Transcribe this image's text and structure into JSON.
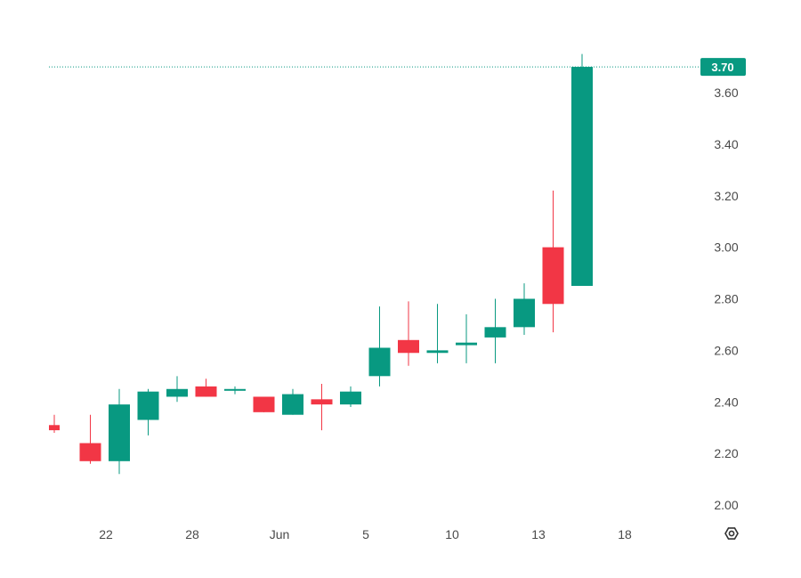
{
  "chart_data": {
    "type": "candlestick",
    "x_ticks": [
      "22",
      "28",
      "Jun",
      "5",
      "10",
      "13",
      "18"
    ],
    "y_ticks": [
      "2.00",
      "2.20",
      "2.40",
      "2.60",
      "2.80",
      "3.00",
      "3.20",
      "3.40",
      "3.60"
    ],
    "ylim": [
      1.95,
      3.78
    ],
    "last_price": 3.7,
    "last_price_label": "3.70",
    "colors": {
      "up": "#089981",
      "down": "#f23645",
      "badge": "#089981",
      "text": "#4a4a4a"
    },
    "candles": [
      {
        "open": 2.31,
        "high": 2.35,
        "low": 2.28,
        "close": 2.29
      },
      {
        "open": 2.24,
        "high": 2.35,
        "low": 2.16,
        "close": 2.17
      },
      {
        "open": 2.17,
        "high": 2.45,
        "low": 2.12,
        "close": 2.39
      },
      {
        "open": 2.33,
        "high": 2.45,
        "low": 2.27,
        "close": 2.44
      },
      {
        "open": 2.42,
        "high": 2.5,
        "low": 2.4,
        "close": 2.45
      },
      {
        "open": 2.46,
        "high": 2.49,
        "low": 2.42,
        "close": 2.42
      },
      {
        "open": 2.45,
        "high": 2.46,
        "low": 2.43,
        "close": 2.45
      },
      {
        "open": 2.42,
        "high": 2.42,
        "low": 2.36,
        "close": 2.36
      },
      {
        "open": 2.35,
        "high": 2.45,
        "low": 2.35,
        "close": 2.43
      },
      {
        "open": 2.41,
        "high": 2.47,
        "low": 2.29,
        "close": 2.39
      },
      {
        "open": 2.39,
        "high": 2.46,
        "low": 2.38,
        "close": 2.44
      },
      {
        "open": 2.5,
        "high": 2.77,
        "low": 2.46,
        "close": 2.61
      },
      {
        "open": 2.64,
        "high": 2.79,
        "low": 2.54,
        "close": 2.59
      },
      {
        "open": 2.59,
        "high": 2.78,
        "low": 2.55,
        "close": 2.6
      },
      {
        "open": 2.62,
        "high": 2.74,
        "low": 2.55,
        "close": 2.63
      },
      {
        "open": 2.65,
        "high": 2.8,
        "low": 2.55,
        "close": 2.69
      },
      {
        "open": 2.69,
        "high": 2.86,
        "low": 2.66,
        "close": 2.8
      },
      {
        "open": 3.0,
        "high": 3.22,
        "low": 2.67,
        "close": 2.78
      },
      {
        "open": 2.85,
        "high": 3.75,
        "low": 2.85,
        "close": 3.7
      }
    ]
  },
  "settings_icon": "gear-icon"
}
